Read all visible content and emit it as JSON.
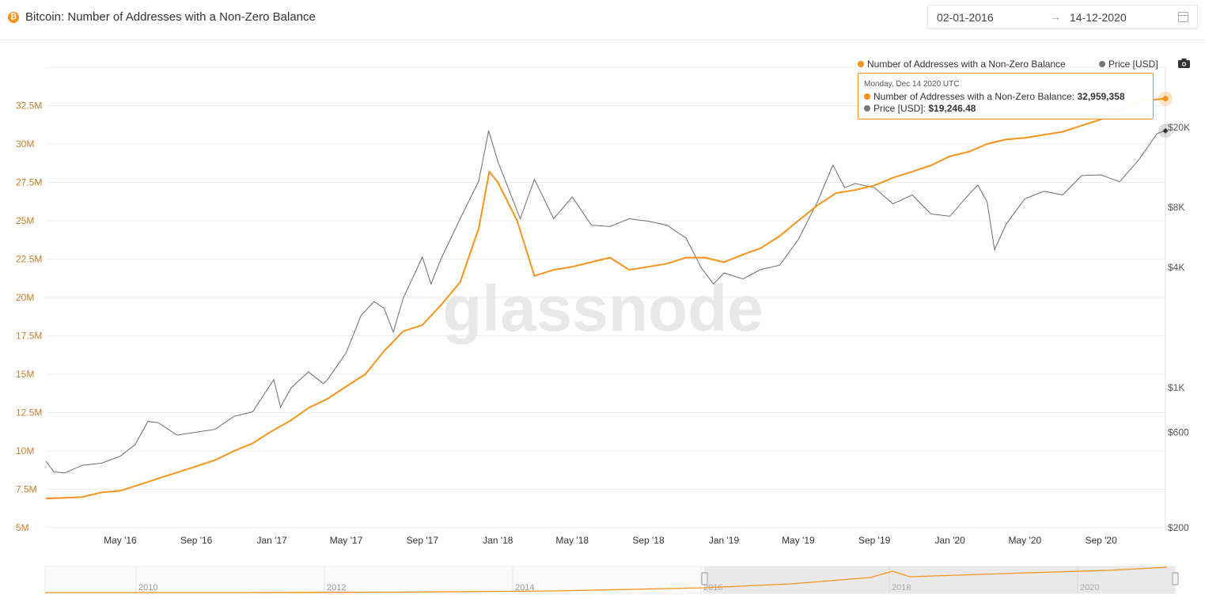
{
  "header": {
    "icon_glyph": "₿",
    "title": "Bitcoin: Number of Addresses with a Non-Zero Balance",
    "date_from": "02-01-2016",
    "date_arrow": "→",
    "date_to": "14-12-2020"
  },
  "legend": {
    "addresses_label": "Number of Addresses with a Non-Zero Balance",
    "price_label": "Price [USD]"
  },
  "tooltip": {
    "date": "Monday, Dec 14 2020 UTC",
    "addresses_label": "Number of Addresses with a Non-Zero Balance:",
    "addresses_value": "32,959,358",
    "price_label": "Price [USD]:",
    "price_value": "$19,246.48"
  },
  "watermark": "glassnode",
  "colors": {
    "addresses": "#f7931a",
    "price": "#6b6b6b",
    "left_axis_text": "#c97f2d",
    "right_axis_text": "#555555",
    "grid": "#ececec"
  },
  "icons": [
    "bitcoin-icon",
    "calendar-icon",
    "camera-icon"
  ],
  "chart_data": {
    "type": "line",
    "title": "Bitcoin: Number of Addresses with a Non-Zero Balance",
    "x_range": [
      "2016-01-02",
      "2020-12-14"
    ],
    "x_ticks": [
      "May '16",
      "Sep '16",
      "Jan '17",
      "May '17",
      "Sep '17",
      "Jan '18",
      "May '18",
      "Sep '18",
      "Jan '19",
      "May '19",
      "Sep '19",
      "Jan '20",
      "May '20",
      "Sep '20"
    ],
    "y_left": {
      "scale": "linear",
      "range": [
        5000000,
        35000000
      ],
      "tick_values": [
        5000000,
        7500000,
        10000000,
        12500000,
        15000000,
        17500000,
        20000000,
        22500000,
        25000000,
        27500000,
        30000000,
        32500000
      ],
      "tick_labels": [
        "5M",
        "7.5M",
        "10M",
        "12.5M",
        "15M",
        "17.5M",
        "20M",
        "22.5M",
        "25M",
        "27.5M",
        "30M",
        "32.5M"
      ]
    },
    "y_right": {
      "scale": "log",
      "range": [
        200,
        40000
      ],
      "tick_values": [
        200,
        600,
        1000,
        4000,
        8000,
        20000
      ],
      "tick_labels": [
        "$200",
        "$600",
        "$1K",
        "$4K",
        "$8K",
        "$20K"
      ]
    },
    "grid": true,
    "legend_position": "top-right",
    "series": [
      {
        "name": "Number of Addresses with a Non-Zero Balance",
        "axis": "left",
        "x": [
          "2016-01-02",
          "2016-02-01",
          "2016-03-01",
          "2016-04-01",
          "2016-05-01",
          "2016-06-01",
          "2016-07-01",
          "2016-08-01",
          "2016-09-01",
          "2016-10-01",
          "2016-11-01",
          "2016-12-01",
          "2017-01-01",
          "2017-02-01",
          "2017-03-01",
          "2017-04-01",
          "2017-05-01",
          "2017-06-01",
          "2017-07-01",
          "2017-08-01",
          "2017-09-01",
          "2017-10-01",
          "2017-11-01",
          "2017-12-01",
          "2017-12-18",
          "2018-01-01",
          "2018-02-01",
          "2018-03-01",
          "2018-04-01",
          "2018-05-01",
          "2018-06-01",
          "2018-07-01",
          "2018-08-01",
          "2018-09-01",
          "2018-10-01",
          "2018-11-01",
          "2018-12-01",
          "2019-01-01",
          "2019-02-01",
          "2019-03-01",
          "2019-04-01",
          "2019-05-01",
          "2019-06-01",
          "2019-07-01",
          "2019-08-01",
          "2019-09-01",
          "2019-10-01",
          "2019-11-01",
          "2019-12-01",
          "2020-01-01",
          "2020-02-01",
          "2020-03-01",
          "2020-04-01",
          "2020-05-01",
          "2020-06-01",
          "2020-07-01",
          "2020-08-01",
          "2020-09-01",
          "2020-10-01",
          "2020-11-01",
          "2020-12-14"
        ],
        "y": [
          6900000,
          6950000,
          7000000,
          7300000,
          7400000,
          7800000,
          8200000,
          8600000,
          9000000,
          9400000,
          10000000,
          10500000,
          11300000,
          12000000,
          12800000,
          13400000,
          14200000,
          15000000,
          16500000,
          17800000,
          18200000,
          19500000,
          21000000,
          24500000,
          28200000,
          27500000,
          25000000,
          21400000,
          21800000,
          22000000,
          22300000,
          22600000,
          21800000,
          22000000,
          22200000,
          22600000,
          22600000,
          22300000,
          22800000,
          23200000,
          24000000,
          25000000,
          26000000,
          26800000,
          27000000,
          27300000,
          27800000,
          28200000,
          28600000,
          29200000,
          29500000,
          30000000,
          30300000,
          30400000,
          30600000,
          30800000,
          31200000,
          31600000,
          32200000,
          32800000,
          32959358
        ]
      },
      {
        "name": "Price [USD]",
        "axis": "right",
        "x": [
          "2016-01-02",
          "2016-01-15",
          "2016-02-01",
          "2016-03-01",
          "2016-04-01",
          "2016-05-01",
          "2016-05-25",
          "2016-06-15",
          "2016-07-01",
          "2016-08-01",
          "2016-09-01",
          "2016-10-01",
          "2016-11-01",
          "2016-12-01",
          "2017-01-04",
          "2017-01-15",
          "2017-02-01",
          "2017-03-01",
          "2017-03-25",
          "2017-04-01",
          "2017-05-01",
          "2017-05-25",
          "2017-06-15",
          "2017-07-01",
          "2017-07-16",
          "2017-08-01",
          "2017-09-01",
          "2017-09-15",
          "2017-10-01",
          "2017-11-01",
          "2017-12-01",
          "2017-12-17",
          "2018-01-01",
          "2018-02-06",
          "2018-03-01",
          "2018-04-01",
          "2018-05-01",
          "2018-06-01",
          "2018-07-01",
          "2018-08-01",
          "2018-09-01",
          "2018-10-01",
          "2018-11-01",
          "2018-11-25",
          "2018-12-15",
          "2019-01-01",
          "2019-02-01",
          "2019-03-01",
          "2019-04-01",
          "2019-05-01",
          "2019-06-01",
          "2019-06-26",
          "2019-07-15",
          "2019-08-01",
          "2019-09-01",
          "2019-10-01",
          "2019-11-01",
          "2019-12-01",
          "2020-01-01",
          "2020-02-01",
          "2020-02-15",
          "2020-03-01",
          "2020-03-13",
          "2020-04-01",
          "2020-05-01",
          "2020-06-01",
          "2020-07-01",
          "2020-08-01",
          "2020-09-01",
          "2020-10-01",
          "2020-11-01",
          "2020-12-01",
          "2020-12-14"
        ],
        "y": [
          430,
          380,
          375,
          410,
          420,
          455,
          520,
          680,
          670,
          580,
          600,
          620,
          720,
          760,
          1100,
          800,
          1000,
          1200,
          1050,
          1100,
          1500,
          2300,
          2700,
          2500,
          1900,
          2800,
          4500,
          3300,
          4400,
          7000,
          10800,
          19300,
          13500,
          7000,
          11000,
          7000,
          9000,
          6500,
          6400,
          7000,
          6800,
          6500,
          5600,
          4000,
          3300,
          3750,
          3500,
          3900,
          4100,
          5500,
          8500,
          13000,
          10000,
          10500,
          10000,
          8300,
          9200,
          7400,
          7200,
          9300,
          10300,
          8500,
          4900,
          6600,
          8800,
          9600,
          9200,
          11500,
          11600,
          10700,
          13800,
          18700,
          19246
        ]
      }
    ]
  }
}
